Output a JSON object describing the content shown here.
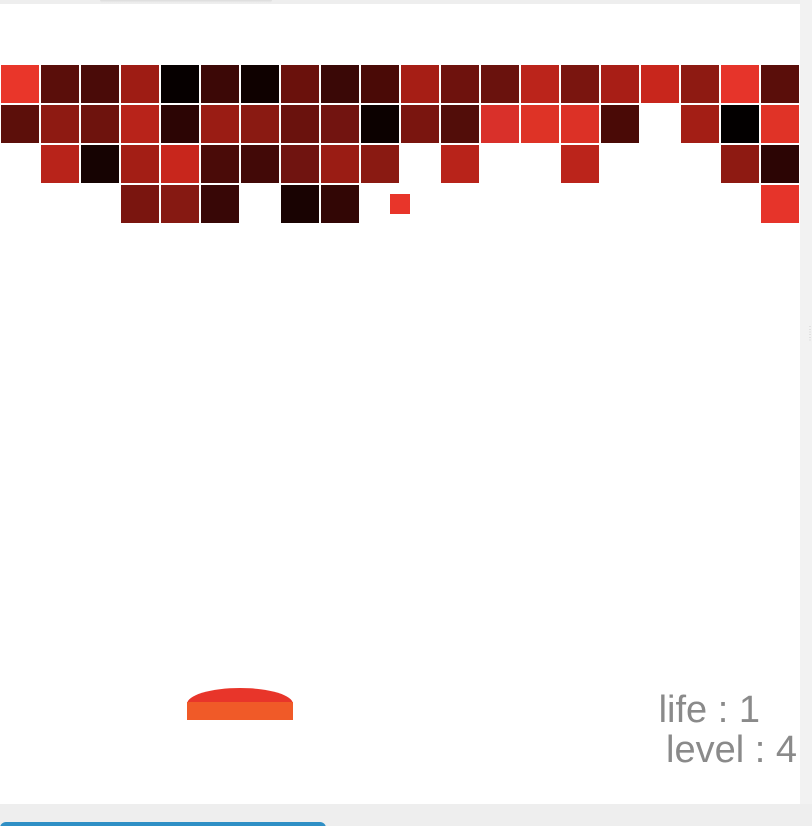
{
  "game": {
    "hud": {
      "life_label": "life",
      "life_value": 1,
      "level_label": "level",
      "level_value": 4,
      "separator": " : "
    },
    "colors": {
      "background": "#ffffff",
      "ball": "#e8352a",
      "paddle_top": "#e8352a",
      "paddle_bottom": "#f05a28",
      "hud_text": "#8a8a8a"
    },
    "brick_grid": {
      "columns": 20,
      "rows": 4,
      "cells": [
        [
          "#e9362a",
          "#5a0e0a",
          "#4a0b08",
          "#9e1c14",
          "#060000",
          "#3c0806",
          "#0f0100",
          "#6a110c",
          "#3a0806",
          "#4a0a06",
          "#a61e15",
          "#6e120d",
          "#6a120d",
          "#bb241b",
          "#7a150f",
          "#a81e16",
          "#c8261c",
          "#8e1a12",
          "#e6342a",
          "#5a0e0a"
        ],
        [
          "#5c0f0a",
          "#8e1a12",
          "#6e130d",
          "#b8231a",
          "#2c0504",
          "#9a1c14",
          "#8a1a12",
          "#6a120d",
          "#721410",
          "#0c0100",
          "#7a150f",
          "#520d09",
          "#d9302a",
          "#de3326",
          "#dc3126",
          "#4a0a06",
          null,
          "#a31e15",
          "#030000",
          "#e03327"
        ],
        [
          null,
          "#b8231a",
          "#160302",
          "#a31e15",
          "#c8261c",
          "#4a0b08",
          "#420907",
          "#701410",
          "#9a1c14",
          "#8a1a12",
          null,
          "#b8231a",
          null,
          null,
          "#bb241b",
          null,
          null,
          null,
          "#8e1a12",
          "#2c0504"
        ],
        [
          null,
          null,
          null,
          "#7a150f",
          "#861912",
          "#380706",
          null,
          "#190302",
          "#320605",
          null,
          null,
          null,
          null,
          null,
          null,
          null,
          null,
          null,
          null,
          "#e6342a"
        ]
      ]
    },
    "ball": {
      "x": 400,
      "y": 200
    },
    "paddle": {
      "x": 240
    }
  }
}
